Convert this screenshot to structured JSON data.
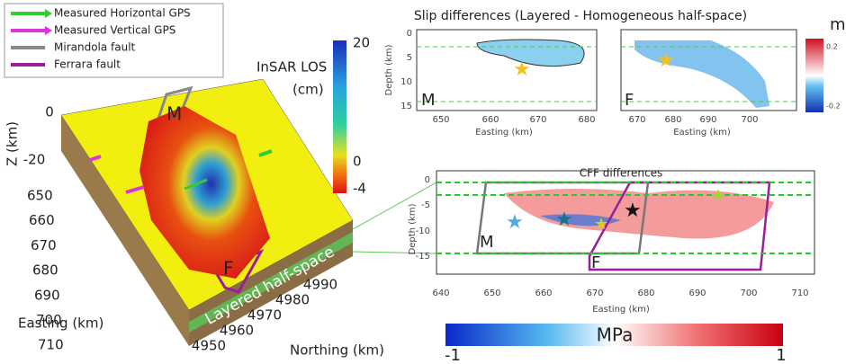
{
  "legend": [
    {
      "label": "Measured Horizontal GPS",
      "color": "#33cc33"
    },
    {
      "label": "Measured Vertical GPS",
      "color": "#dd33dd"
    },
    {
      "label": "Mirandola fault",
      "color": "#888888"
    },
    {
      "label": "Ferrara fault",
      "color": "#991f99"
    }
  ],
  "panel_3d": {
    "colorbar_title": "InSAR LOS",
    "colorbar_unit": "(cm)",
    "colorbar_ticks": [
      "20",
      "0",
      "-4"
    ],
    "z_label": "Z (km)",
    "z_ticks": [
      "0",
      "-20"
    ],
    "easting_label": "Easting (km)",
    "easting_ticks": [
      "650",
      "660",
      "670",
      "680",
      "690",
      "700",
      "710"
    ],
    "northing_label": "Northing (km)",
    "northing_ticks": [
      "4950",
      "4960",
      "4970",
      "4980",
      "4990"
    ],
    "fault_labels": [
      "M",
      "F"
    ],
    "model_label": "Layered half-space"
  },
  "slip_panel": {
    "title": "Slip differences (Layered - Homogeneous half-space)",
    "unit": "m",
    "colorbar_ticks": [
      "0.2",
      "-0.2"
    ],
    "left": {
      "y_label": "Depth (km)",
      "y_ticks": [
        "0",
        "5",
        "10",
        "15"
      ],
      "x_label": "Easting (km)",
      "x_ticks": [
        "650",
        "660",
        "670",
        "680"
      ],
      "fault": "M"
    },
    "right": {
      "x_label": "Easting (km)",
      "x_ticks": [
        "670",
        "680",
        "690",
        "700"
      ],
      "fault": "F"
    }
  },
  "cff_panel": {
    "title": "CFF differences",
    "y_label": "Depth (km)",
    "y_ticks": [
      "0",
      "-5",
      "-10",
      "-15"
    ],
    "x_label": "Easting (km)",
    "x_ticks": [
      "640",
      "650",
      "660",
      "670",
      "680",
      "690",
      "700",
      "710"
    ],
    "fault_labels": [
      "M",
      "F"
    ],
    "colorbar_unit": "MPa",
    "colorbar_ticks": [
      "-1",
      "1"
    ]
  }
}
